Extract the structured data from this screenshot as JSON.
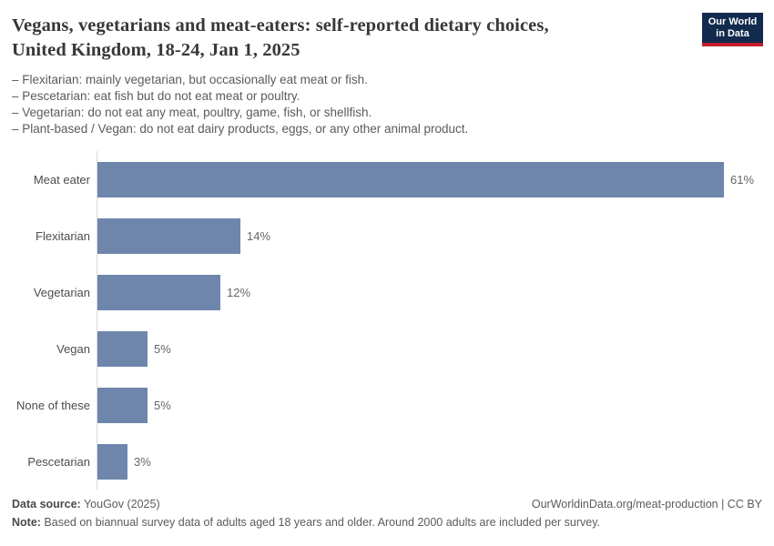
{
  "header": {
    "title_lines": [
      "Vegans, vegetarians and meat-eaters: self-reported dietary choices,",
      "United Kingdom, 18-24, Jan 1, 2025"
    ],
    "subtitle_lines": [
      "– Flexitarian: mainly vegetarian, but occasionally eat meat or fish.",
      "– Pescetarian: eat fish but do not eat meat or poultry.",
      "– Vegetarian: do not eat any meat, poultry, game, fish, or shellfish.",
      "– Plant-based / Vegan: do not eat dairy products, eggs, or any other animal product."
    ],
    "logo": {
      "line1": "Our World",
      "line2": "in Data"
    }
  },
  "chart_data": {
    "type": "bar",
    "orientation": "horizontal",
    "title": "Vegans, vegetarians and meat-eaters: self-reported dietary choices, United Kingdom, 18-24, Jan 1, 2025",
    "categories": [
      "Meat eater",
      "Flexitarian",
      "Vegetarian",
      "Vegan",
      "None of these",
      "Pescetarian"
    ],
    "values": [
      61,
      14,
      12,
      5,
      5,
      3
    ],
    "value_labels": [
      "61%",
      "14%",
      "12%",
      "5%",
      "5%",
      "3%"
    ],
    "unit": "%",
    "xlim": [
      0,
      61
    ],
    "grid": false,
    "legend": "none",
    "bar_color": "#6e86ac",
    "axis_color": "#dcdcdc"
  },
  "footer": {
    "data_source_label": "Data source:",
    "data_source_value": " YouGov (2025)",
    "citation": "OurWorldinData.org/meat-production | CC BY",
    "note_label": "Note:",
    "note_value": " Based on biannual survey data of adults aged 18 years and older. Around 2000 adults are included per survey."
  },
  "colors": {
    "bar": "#6e86ac",
    "axis": "#dcdcdc",
    "title_text": "#383838",
    "body_text": "#5b5b5b",
    "logo_bg": "#122a4d",
    "logo_stripe": "#c01e2d"
  }
}
